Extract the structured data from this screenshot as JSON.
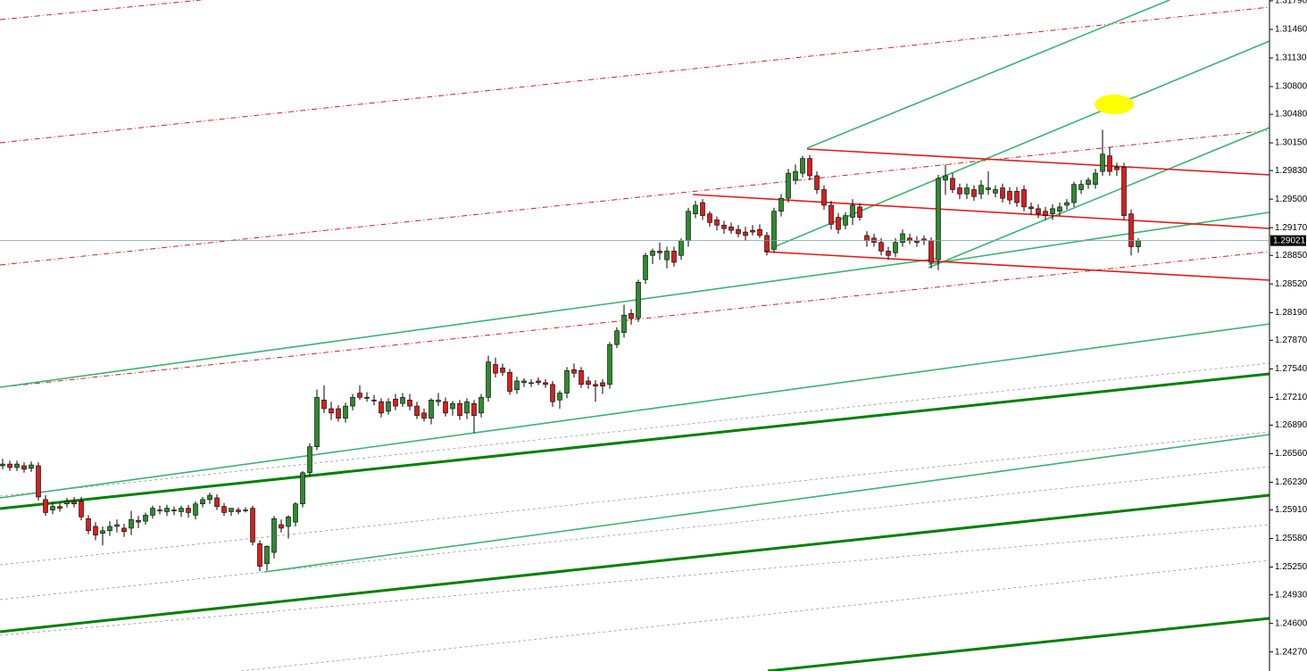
{
  "chart_data": {
    "type": "candlestick",
    "ylim": [
      1.2405,
      1.318
    ],
    "yticks": [
      {
        "value": 1.3179,
        "label": "1.31790"
      },
      {
        "value": 1.3146,
        "label": "1.31460"
      },
      {
        "value": 1.3113,
        "label": "1.31130"
      },
      {
        "value": 1.308,
        "label": "1.30800"
      },
      {
        "value": 1.3048,
        "label": "1.30480"
      },
      {
        "value": 1.3015,
        "label": "1.30150"
      },
      {
        "value": 1.2983,
        "label": "1.29830"
      },
      {
        "value": 1.295,
        "label": "1.29500"
      },
      {
        "value": 1.2917,
        "label": "1.29170"
      },
      {
        "value": 1.2885,
        "label": "1.28850"
      },
      {
        "value": 1.2852,
        "label": "1.28520"
      },
      {
        "value": 1.2819,
        "label": "1.28190"
      },
      {
        "value": 1.2787,
        "label": "1.27870"
      },
      {
        "value": 1.2754,
        "label": "1.27540"
      },
      {
        "value": 1.2721,
        "label": "1.27210"
      },
      {
        "value": 1.2689,
        "label": "1.26890"
      },
      {
        "value": 1.2656,
        "label": "1.26560"
      },
      {
        "value": 1.2623,
        "label": "1.26230"
      },
      {
        "value": 1.2591,
        "label": "1.25910"
      },
      {
        "value": 1.2558,
        "label": "1.25580"
      },
      {
        "value": 1.2525,
        "label": "1.25250"
      },
      {
        "value": 1.2493,
        "label": "1.24930"
      },
      {
        "value": 1.246,
        "label": "1.24600"
      },
      {
        "value": 1.2427,
        "label": "1.24270"
      }
    ],
    "last_price": 1.29021,
    "up_color": "#2e8b2e",
    "down_color": "#d42020",
    "ohlc": [
      [
        1.2642,
        1.265,
        1.2638,
        1.2644
      ],
      [
        1.2644,
        1.2648,
        1.2636,
        1.264
      ],
      [
        1.264,
        1.2648,
        1.2636,
        1.2644
      ],
      [
        1.2642,
        1.2646,
        1.2634,
        1.2638
      ],
      [
        1.2639,
        1.2647,
        1.2635,
        1.2643
      ],
      [
        1.2642,
        1.2646,
        1.2602,
        1.2606
      ],
      [
        1.2603,
        1.2608,
        1.2584,
        1.2588
      ],
      [
        1.2591,
        1.26,
        1.2586,
        1.2595
      ],
      [
        1.2595,
        1.2599,
        1.2589,
        1.2593
      ],
      [
        1.2598,
        1.2605,
        1.2594,
        1.2601
      ],
      [
        1.2601,
        1.2606,
        1.2594,
        1.2598
      ],
      [
        1.2601,
        1.2606,
        1.2579,
        1.2583
      ],
      [
        1.2581,
        1.2585,
        1.2563,
        1.2567
      ],
      [
        1.2572,
        1.2577,
        1.2556,
        1.2562
      ],
      [
        1.2564,
        1.2572,
        1.255,
        1.2567
      ],
      [
        1.2567,
        1.2578,
        1.2561,
        1.2572
      ],
      [
        1.2572,
        1.258,
        1.2565,
        1.2574
      ],
      [
        1.257,
        1.2575,
        1.256,
        1.2566
      ],
      [
        1.257,
        1.259,
        1.2562,
        1.258
      ],
      [
        1.2579,
        1.2584,
        1.257,
        1.2577
      ],
      [
        1.2578,
        1.2588,
        1.2574,
        1.2585
      ],
      [
        1.2585,
        1.2596,
        1.2581,
        1.2593
      ],
      [
        1.2591,
        1.2596,
        1.2586,
        1.2591
      ],
      [
        1.2589,
        1.2597,
        1.2584,
        1.2593
      ],
      [
        1.2591,
        1.2595,
        1.2585,
        1.259
      ],
      [
        1.2589,
        1.2596,
        1.2583,
        1.2593
      ],
      [
        1.2593,
        1.2597,
        1.2582,
        1.2588
      ],
      [
        1.2585,
        1.2601,
        1.258,
        1.2598
      ],
      [
        1.2598,
        1.2606,
        1.2594,
        1.2603
      ],
      [
        1.2603,
        1.2611,
        1.2598,
        1.2608
      ],
      [
        1.2605,
        1.2609,
        1.2591,
        1.2595
      ],
      [
        1.2595,
        1.2599,
        1.2584,
        1.2588
      ],
      [
        1.2589,
        1.2593,
        1.2584,
        1.2593
      ],
      [
        1.2591,
        1.2594,
        1.2586,
        1.2589
      ],
      [
        1.2591,
        1.2594,
        1.2588,
        1.2591
      ],
      [
        1.2593,
        1.2596,
        1.255,
        1.2554
      ],
      [
        1.2552,
        1.2556,
        1.252,
        1.2526
      ],
      [
        1.2529,
        1.255,
        1.2521,
        1.2549
      ],
      [
        1.2542,
        1.2584,
        1.2535,
        1.2581
      ],
      [
        1.2574,
        1.258,
        1.2565,
        1.257
      ],
      [
        1.2572,
        1.2585,
        1.2558,
        1.2583
      ],
      [
        1.2577,
        1.26,
        1.2572,
        1.2598
      ],
      [
        1.2598,
        1.2636,
        1.2594,
        1.2634
      ],
      [
        1.2634,
        1.2668,
        1.263,
        1.2664
      ],
      [
        1.2664,
        1.273,
        1.266,
        1.2721
      ],
      [
        1.2718,
        1.2735,
        1.2703,
        1.2708
      ],
      [
        1.2708,
        1.2716,
        1.2695,
        1.2703
      ],
      [
        1.2708,
        1.2712,
        1.2693,
        1.2697
      ],
      [
        1.2697,
        1.2715,
        1.2692,
        1.2711
      ],
      [
        1.2711,
        1.2725,
        1.2706,
        1.2721
      ],
      [
        1.2726,
        1.2735,
        1.2718,
        1.2721
      ],
      [
        1.2721,
        1.2727,
        1.2716,
        1.272
      ],
      [
        1.2718,
        1.2724,
        1.2712,
        1.2717
      ],
      [
        1.2716,
        1.272,
        1.2698,
        1.2703
      ],
      [
        1.2705,
        1.272,
        1.2701,
        1.2716
      ],
      [
        1.2719,
        1.2725,
        1.2706,
        1.2711
      ],
      [
        1.2714,
        1.2726,
        1.271,
        1.2721
      ],
      [
        1.2718,
        1.2725,
        1.2706,
        1.2711
      ],
      [
        1.2711,
        1.2716,
        1.2696,
        1.27
      ],
      [
        1.2703,
        1.2708,
        1.2693,
        1.2697
      ],
      [
        1.2697,
        1.272,
        1.269,
        1.2718
      ],
      [
        1.2716,
        1.2726,
        1.2711,
        1.2718
      ],
      [
        1.2716,
        1.2721,
        1.2699,
        1.2703
      ],
      [
        1.2708,
        1.2717,
        1.27,
        1.2714
      ],
      [
        1.2714,
        1.2718,
        1.2695,
        1.27
      ],
      [
        1.2703,
        1.272,
        1.2696,
        1.2716
      ],
      [
        1.2714,
        1.2718,
        1.268,
        1.27
      ],
      [
        1.2703,
        1.2725,
        1.2698,
        1.2721
      ],
      [
        1.2721,
        1.2769,
        1.2716,
        1.2762
      ],
      [
        1.2759,
        1.2767,
        1.2744,
        1.2749
      ],
      [
        1.2755,
        1.276,
        1.2746,
        1.275
      ],
      [
        1.275,
        1.2754,
        1.2724,
        1.2728
      ],
      [
        1.273,
        1.2745,
        1.2725,
        1.274
      ],
      [
        1.2738,
        1.2743,
        1.2733,
        1.274
      ],
      [
        1.2738,
        1.2742,
        1.2733,
        1.2738
      ],
      [
        1.274,
        1.2744,
        1.2735,
        1.2738
      ],
      [
        1.2738,
        1.2742,
        1.2732,
        1.2736
      ],
      [
        1.2736,
        1.274,
        1.271,
        1.2716
      ],
      [
        1.2718,
        1.2729,
        1.2708,
        1.2726
      ],
      [
        1.2726,
        1.2756,
        1.272,
        1.2752
      ],
      [
        1.2753,
        1.276,
        1.2744,
        1.2749
      ],
      [
        1.2752,
        1.2756,
        1.2732,
        1.2736
      ],
      [
        1.274,
        1.2745,
        1.2731,
        1.2736
      ],
      [
        1.2736,
        1.2741,
        1.2716,
        1.2734
      ],
      [
        1.2738,
        1.2742,
        1.2725,
        1.2734
      ],
      [
        1.2736,
        1.2785,
        1.2731,
        1.2782
      ],
      [
        1.2782,
        1.2802,
        1.2778,
        1.2798
      ],
      [
        1.2796,
        1.2828,
        1.279,
        1.2816
      ],
      [
        1.2818,
        1.2823,
        1.2805,
        1.2812
      ],
      [
        1.2813,
        1.2857,
        1.2808,
        1.2854
      ],
      [
        1.2857,
        1.2888,
        1.2852,
        1.2885
      ],
      [
        1.2885,
        1.2893,
        1.2875,
        1.289
      ],
      [
        1.289,
        1.29,
        1.288,
        1.2888
      ],
      [
        1.288,
        1.2895,
        1.287,
        1.289
      ],
      [
        1.289,
        1.2895,
        1.2872,
        1.2877
      ],
      [
        1.2885,
        1.2905,
        1.288,
        1.2902
      ],
      [
        1.2902,
        1.294,
        1.2895,
        1.2936
      ],
      [
        1.2933,
        1.2948,
        1.2928,
        1.2943
      ],
      [
        1.2946,
        1.295,
        1.2926,
        1.2931
      ],
      [
        1.2933,
        1.2936,
        1.2918,
        1.2923
      ],
      [
        1.2926,
        1.293,
        1.2914,
        1.292
      ],
      [
        1.292,
        1.2925,
        1.291,
        1.2916
      ],
      [
        1.2918,
        1.2923,
        1.291,
        1.2914
      ],
      [
        1.2915,
        1.292,
        1.2906,
        1.291
      ],
      [
        1.2912,
        1.2918,
        1.2902,
        1.2908
      ],
      [
        1.2914,
        1.292,
        1.2908,
        1.2912
      ],
      [
        1.2915,
        1.2921,
        1.2905,
        1.2908
      ],
      [
        1.2908,
        1.2912,
        1.2885,
        1.289
      ],
      [
        1.2892,
        1.294,
        1.2888,
        1.2936
      ],
      [
        1.2936,
        1.2956,
        1.293,
        1.2951
      ],
      [
        1.2951,
        1.2985,
        1.2946,
        1.298
      ],
      [
        1.2972,
        1.299,
        1.2967,
        1.2982
      ],
      [
        1.298,
        1.3,
        1.2975,
        1.2997
      ],
      [
        1.2997,
        1.3001,
        1.2972,
        1.2977
      ],
      [
        1.2977,
        1.2982,
        1.2956,
        1.2961
      ],
      [
        1.2961,
        1.2966,
        1.2938,
        1.2943
      ],
      [
        1.2943,
        1.2948,
        1.2915,
        1.2921
      ],
      [
        1.2929,
        1.2934,
        1.291,
        1.2915
      ],
      [
        1.292,
        1.2935,
        1.2915,
        1.2931
      ],
      [
        1.2929,
        1.295,
        1.292,
        1.2943
      ],
      [
        1.2941,
        1.2945,
        1.2925,
        1.2929
      ],
      [
        1.2908,
        1.2913,
        1.2895,
        1.2902
      ],
      [
        1.2905,
        1.291,
        1.2895,
        1.29
      ],
      [
        1.29,
        1.2905,
        1.2885,
        1.289
      ],
      [
        1.289,
        1.2895,
        1.288,
        1.2885
      ],
      [
        1.2888,
        1.2905,
        1.2883,
        1.29
      ],
      [
        1.29,
        1.2915,
        1.2895,
        1.291
      ],
      [
        1.2905,
        1.291,
        1.2898,
        1.2902
      ],
      [
        1.2902,
        1.2907,
        1.2895,
        1.29
      ],
      [
        1.2904,
        1.2908,
        1.2897,
        1.2902
      ],
      [
        1.2902,
        1.2906,
        1.287,
        1.2877
      ],
      [
        1.288,
        1.2978,
        1.2868,
        1.2974
      ],
      [
        1.2972,
        1.299,
        1.2955,
        1.2977
      ],
      [
        1.2974,
        1.298,
        1.2957,
        1.2961
      ],
      [
        1.2963,
        1.2968,
        1.295,
        1.2956
      ],
      [
        1.2956,
        1.2968,
        1.295,
        1.2963
      ],
      [
        1.2961,
        1.2966,
        1.2948,
        1.2953
      ],
      [
        1.2956,
        1.2972,
        1.295,
        1.2966
      ],
      [
        1.2961,
        1.2982,
        1.2955,
        1.2963
      ],
      [
        1.2957,
        1.2966,
        1.2952,
        1.2961
      ],
      [
        1.2963,
        1.2968,
        1.2946,
        1.2951
      ],
      [
        1.2959,
        1.2964,
        1.2944,
        1.2949
      ],
      [
        1.2959,
        1.2964,
        1.2941,
        1.2946
      ],
      [
        1.2961,
        1.2966,
        1.2936,
        1.2941
      ],
      [
        1.2941,
        1.2946,
        1.2932,
        1.2939
      ],
      [
        1.2939,
        1.2944,
        1.2928,
        1.2933
      ],
      [
        1.2936,
        1.2941,
        1.2926,
        1.2931
      ],
      [
        1.2933,
        1.2944,
        1.2926,
        1.2939
      ],
      [
        1.2936,
        1.2946,
        1.2931,
        1.2941
      ],
      [
        1.2943,
        1.295,
        1.2938,
        1.2946
      ],
      [
        1.2946,
        1.297,
        1.2941,
        1.2967
      ],
      [
        1.2961,
        1.2972,
        1.2956,
        1.2967
      ],
      [
        1.2967,
        1.2975,
        1.2962,
        1.2972
      ],
      [
        1.2967,
        1.2985,
        1.2962,
        1.298
      ],
      [
        1.2982,
        1.303,
        1.2977,
        1.3002
      ],
      [
        1.3,
        1.301,
        1.2977,
        1.2982
      ],
      [
        1.2987,
        1.2992,
        1.2977,
        1.2984
      ],
      [
        1.2987,
        1.2992,
        1.2926,
        1.2931
      ],
      [
        1.2933,
        1.2938,
        1.2885,
        1.2895
      ],
      [
        1.2895,
        1.2905,
        1.2888,
        1.29021
      ]
    ]
  }
}
